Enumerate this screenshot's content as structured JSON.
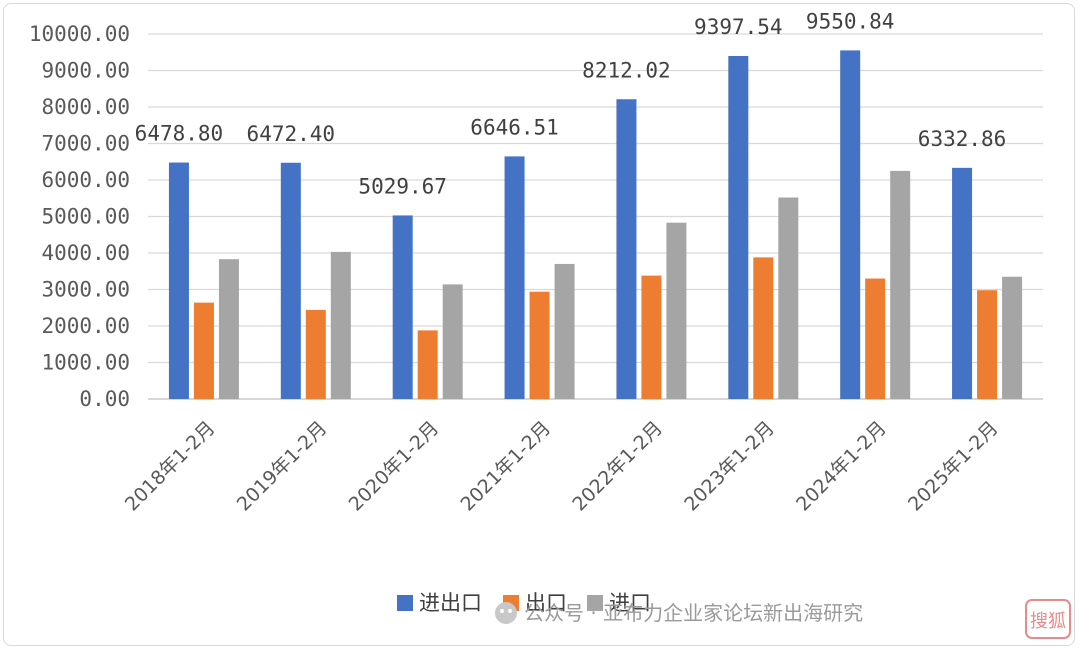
{
  "chart_data": {
    "type": "bar",
    "categories": [
      "2018年1-2月",
      "2019年1-2月",
      "2020年1-2月",
      "2021年1-2月",
      "2022年1-2月",
      "2023年1-2月",
      "2024年1-2月",
      "2025年1-2月"
    ],
    "series": [
      {
        "name": "进出口",
        "color": "#4472c4",
        "values": [
          6478.8,
          6472.4,
          5029.67,
          6646.51,
          8212.02,
          9397.54,
          9550.84,
          6332.86
        ],
        "labels": [
          "6478.80",
          "6472.40",
          "5029.67",
          "6646.51",
          "8212.02",
          "9397.54",
          "9550.84",
          "6332.86"
        ]
      },
      {
        "name": "出口",
        "color": "#ed7d31",
        "values": [
          2640,
          2440,
          1880,
          2940,
          3380,
          3880,
          3300,
          2980
        ]
      },
      {
        "name": "进口",
        "color": "#a5a5a5",
        "values": [
          3830,
          4030,
          3140,
          3700,
          4830,
          5520,
          6250,
          3350
        ]
      }
    ],
    "ylim": [
      0,
      10000
    ],
    "yticks": [
      "0.00",
      "1000.00",
      "2000.00",
      "3000.00",
      "4000.00",
      "5000.00",
      "6000.00",
      "7000.00",
      "8000.00",
      "9000.00",
      "10000.00"
    ],
    "grid": true,
    "legend": "bottom"
  },
  "watermark": {
    "text": "公众号 · 亚布力企业家论坛新出海研究",
    "stamp": "搜狐"
  }
}
